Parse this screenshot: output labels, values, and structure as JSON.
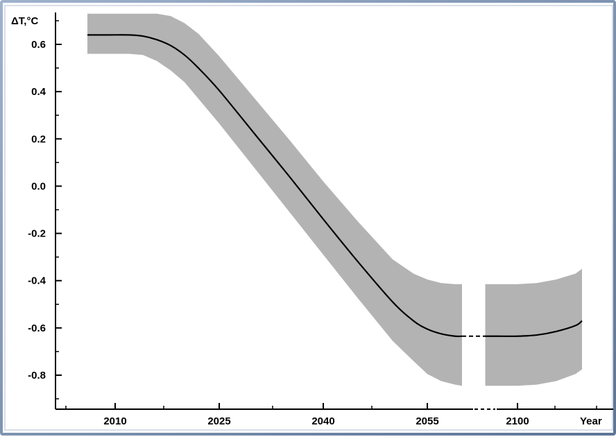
{
  "chart_data": {
    "type": "line",
    "y_label": "ΔT,°C",
    "x_label": "Year",
    "y_ticks": [
      "0.6",
      "0.4",
      "0.2",
      "0.0",
      "-0.2",
      "-0.4",
      "-0.6",
      "-0.8"
    ],
    "y_tick_values": [
      0.6,
      0.4,
      0.2,
      0.0,
      -0.2,
      -0.4,
      -0.6,
      -0.8
    ],
    "x_ticks": [
      "2010",
      "2025",
      "2040",
      "2055",
      "2100"
    ],
    "x_tick_values": [
      2010,
      2025,
      2040,
      2055,
      2100
    ],
    "x_axis_break": "2060–2095",
    "ylim": [
      -0.95,
      0.73
    ],
    "series": [
      {
        "type": "mean-line",
        "color": "#000000",
        "x": [
          2006,
          2009,
          2012,
          2014,
          2016,
          2018,
          2020,
          2022,
          2025,
          2030,
          2035,
          2040,
          2045,
          2050,
          2053,
          2055,
          2057,
          2059,
          2060
        ],
        "y": [
          0.64,
          0.64,
          0.64,
          0.635,
          0.62,
          0.595,
          0.555,
          0.5,
          0.405,
          0.225,
          0.045,
          -0.14,
          -0.32,
          -0.49,
          -0.57,
          -0.605,
          -0.625,
          -0.635,
          -0.635
        ]
      },
      {
        "type": "mean-line",
        "color": "#000000",
        "x": [
          2095,
          2097,
          2100,
          2103,
          2106,
          2109,
          2110
        ],
        "y": [
          -0.635,
          -0.635,
          -0.635,
          -0.63,
          -0.615,
          -0.59,
          -0.57
        ]
      },
      {
        "type": "uncertainty-band",
        "color": "#b3b3b3",
        "x": [
          2006,
          2009,
          2012,
          2014,
          2016,
          2018,
          2020,
          2022,
          2025,
          2030,
          2035,
          2040,
          2045,
          2050,
          2053,
          2055,
          2057,
          2059,
          2060
        ],
        "upper": [
          0.73,
          0.73,
          0.73,
          0.73,
          0.73,
          0.72,
          0.69,
          0.645,
          0.55,
          0.375,
          0.2,
          0.02,
          -0.15,
          -0.31,
          -0.37,
          -0.395,
          -0.41,
          -0.415,
          -0.415
        ],
        "lower": [
          0.56,
          0.56,
          0.56,
          0.555,
          0.53,
          0.49,
          0.44,
          0.37,
          0.265,
          0.08,
          -0.105,
          -0.29,
          -0.475,
          -0.655,
          -0.74,
          -0.795,
          -0.825,
          -0.84,
          -0.845
        ]
      },
      {
        "type": "uncertainty-band",
        "color": "#b3b3b3",
        "x": [
          2095,
          2097,
          2100,
          2103,
          2106,
          2109,
          2110
        ],
        "upper": [
          -0.415,
          -0.415,
          -0.415,
          -0.41,
          -0.395,
          -0.37,
          -0.35
        ],
        "lower": [
          -0.845,
          -0.845,
          -0.845,
          -0.84,
          -0.825,
          -0.795,
          -0.775
        ]
      }
    ],
    "background_color": "#ffffff",
    "frame_color": "#6f86a7"
  }
}
